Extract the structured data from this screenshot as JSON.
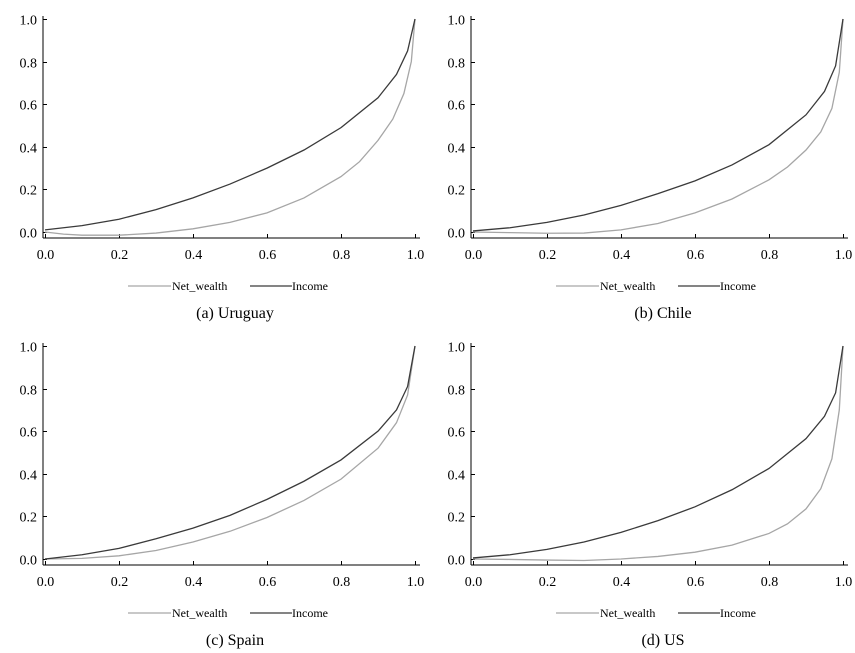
{
  "colors": {
    "net_wealth": "#a6a6a6",
    "income": "#3a3a3a"
  },
  "chart_data": [
    {
      "type": "line",
      "caption": "(a) Uruguay",
      "xlim": [
        0,
        1
      ],
      "ylim": [
        0,
        1
      ],
      "xticks": [
        "0.0",
        "0.2",
        "0.4",
        "0.6",
        "0.8",
        "1.0"
      ],
      "yticks": [
        "0.0",
        "0.2",
        "0.4",
        "0.6",
        "0.8",
        "1.0"
      ],
      "legend": [
        "Net_wealth",
        "Income"
      ],
      "series": [
        {
          "name": "Net_wealth",
          "x": [
            0,
            0.05,
            0.1,
            0.2,
            0.3,
            0.4,
            0.5,
            0.6,
            0.7,
            0.8,
            0.85,
            0.9,
            0.94,
            0.97,
            0.99,
            1.0
          ],
          "y": [
            0,
            -0.01,
            -0.015,
            -0.015,
            -0.005,
            0.015,
            0.045,
            0.09,
            0.16,
            0.26,
            0.33,
            0.43,
            0.53,
            0.65,
            0.8,
            1.0
          ]
        },
        {
          "name": "Income",
          "x": [
            0,
            0.1,
            0.2,
            0.3,
            0.4,
            0.5,
            0.6,
            0.7,
            0.8,
            0.9,
            0.95,
            0.98,
            1.0
          ],
          "y": [
            0.01,
            0.03,
            0.06,
            0.105,
            0.16,
            0.225,
            0.3,
            0.385,
            0.49,
            0.63,
            0.74,
            0.85,
            1.0
          ]
        }
      ]
    },
    {
      "type": "line",
      "caption": "(b) Chile",
      "xlim": [
        0,
        1
      ],
      "ylim": [
        0,
        1
      ],
      "xticks": [
        "0.0",
        "0.2",
        "0.4",
        "0.6",
        "0.8",
        "1.0"
      ],
      "yticks": [
        "0.0",
        "0.2",
        "0.4",
        "0.6",
        "0.8",
        "1.0"
      ],
      "legend": [
        "Net_wealth",
        "Income"
      ],
      "series": [
        {
          "name": "Net_wealth",
          "x": [
            0,
            0.1,
            0.2,
            0.3,
            0.4,
            0.5,
            0.6,
            0.7,
            0.8,
            0.85,
            0.9,
            0.94,
            0.97,
            0.99,
            1.0
          ],
          "y": [
            0,
            -0.003,
            -0.006,
            -0.005,
            0.01,
            0.04,
            0.09,
            0.155,
            0.245,
            0.305,
            0.385,
            0.47,
            0.58,
            0.75,
            1.0
          ]
        },
        {
          "name": "Income",
          "x": [
            0,
            0.1,
            0.2,
            0.3,
            0.4,
            0.5,
            0.6,
            0.7,
            0.8,
            0.9,
            0.95,
            0.98,
            1.0
          ],
          "y": [
            0.005,
            0.02,
            0.045,
            0.08,
            0.125,
            0.18,
            0.24,
            0.315,
            0.41,
            0.55,
            0.66,
            0.78,
            1.0
          ]
        }
      ]
    },
    {
      "type": "line",
      "caption": "(c) Spain",
      "xlim": [
        0,
        1
      ],
      "ylim": [
        0,
        1
      ],
      "xticks": [
        "0.0",
        "0.2",
        "0.4",
        "0.6",
        "0.8",
        "1.0"
      ],
      "yticks": [
        "0.0",
        "0.2",
        "0.4",
        "0.6",
        "0.8",
        "1.0"
      ],
      "legend": [
        "Net_wealth",
        "Income"
      ],
      "series": [
        {
          "name": "Net_wealth",
          "x": [
            0,
            0.1,
            0.2,
            0.3,
            0.4,
            0.5,
            0.6,
            0.7,
            0.8,
            0.9,
            0.95,
            0.98,
            1.0
          ],
          "y": [
            0,
            0.003,
            0.015,
            0.04,
            0.08,
            0.13,
            0.195,
            0.275,
            0.375,
            0.52,
            0.64,
            0.77,
            1.0
          ]
        },
        {
          "name": "Income",
          "x": [
            0,
            0.1,
            0.2,
            0.3,
            0.4,
            0.5,
            0.6,
            0.7,
            0.8,
            0.9,
            0.95,
            0.98,
            1.0
          ],
          "y": [
            0,
            0.02,
            0.05,
            0.095,
            0.145,
            0.205,
            0.28,
            0.365,
            0.465,
            0.6,
            0.7,
            0.81,
            1.0
          ]
        }
      ]
    },
    {
      "type": "line",
      "caption": "(d) US",
      "xlim": [
        0,
        1
      ],
      "ylim": [
        0,
        1
      ],
      "xticks": [
        "0.0",
        "0.2",
        "0.4",
        "0.6",
        "0.8",
        "1.0"
      ],
      "yticks": [
        "0.0",
        "0.2",
        "0.4",
        "0.6",
        "0.8",
        "1.0"
      ],
      "legend": [
        "Net_wealth",
        "Income"
      ],
      "series": [
        {
          "name": "Net_wealth",
          "x": [
            0,
            0.1,
            0.2,
            0.3,
            0.4,
            0.5,
            0.6,
            0.7,
            0.8,
            0.85,
            0.9,
            0.94,
            0.97,
            0.99,
            1.0
          ],
          "y": [
            0,
            -0.002,
            -0.005,
            -0.007,
            0.0,
            0.012,
            0.032,
            0.065,
            0.12,
            0.165,
            0.235,
            0.33,
            0.47,
            0.7,
            1.0
          ]
        },
        {
          "name": "Income",
          "x": [
            0,
            0.1,
            0.2,
            0.3,
            0.4,
            0.5,
            0.6,
            0.7,
            0.8,
            0.9,
            0.95,
            0.98,
            1.0
          ],
          "y": [
            0.005,
            0.02,
            0.045,
            0.08,
            0.125,
            0.18,
            0.245,
            0.325,
            0.425,
            0.565,
            0.67,
            0.78,
            1.0
          ]
        }
      ]
    }
  ]
}
